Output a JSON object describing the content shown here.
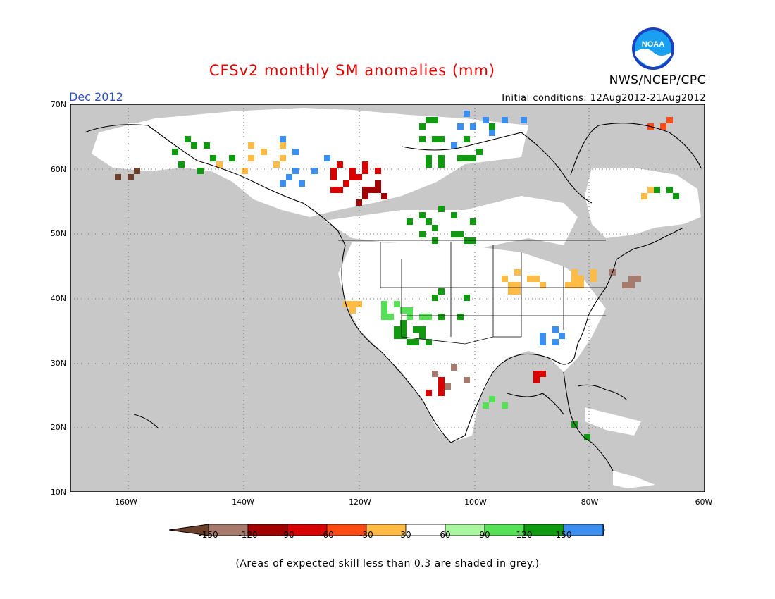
{
  "title": "CFSv2 monthly SM anomalies (mm)",
  "period": "Dec 2012",
  "initial_conditions": "Initial conditions: 12Aug2012-21Aug2012",
  "agency": "NWS/NCEP/CPC",
  "logo_text": "NOAA",
  "footnote": "(Areas of expected skill less than 0.3 are shaded in grey.)",
  "lat_labels": [
    "70N",
    "60N",
    "50N",
    "40N",
    "30N",
    "20N",
    "10N"
  ],
  "lon_labels": [
    "160W",
    "140W",
    "120W",
    "100W",
    "80W",
    "60W"
  ],
  "colorbar": {
    "tick_labels": [
      "-150",
      "-120",
      "-90",
      "-60",
      "-30",
      "30",
      "60",
      "90",
      "120",
      "150"
    ],
    "colors": [
      "#6b3f2a",
      "#a67b6e",
      "#a00000",
      "#d90000",
      "#ff4a14",
      "#ffbb44",
      "#ffffff",
      "#aaf5a0",
      "#55e055",
      "#109a10",
      "#3b8ff0",
      "#1a5ad6"
    ]
  },
  "colors": {
    "skill_mask": "#c8c8c8",
    "no_anomaly": "#ffffff",
    "title": "#e00000",
    "period": "#2a4fd6"
  }
}
